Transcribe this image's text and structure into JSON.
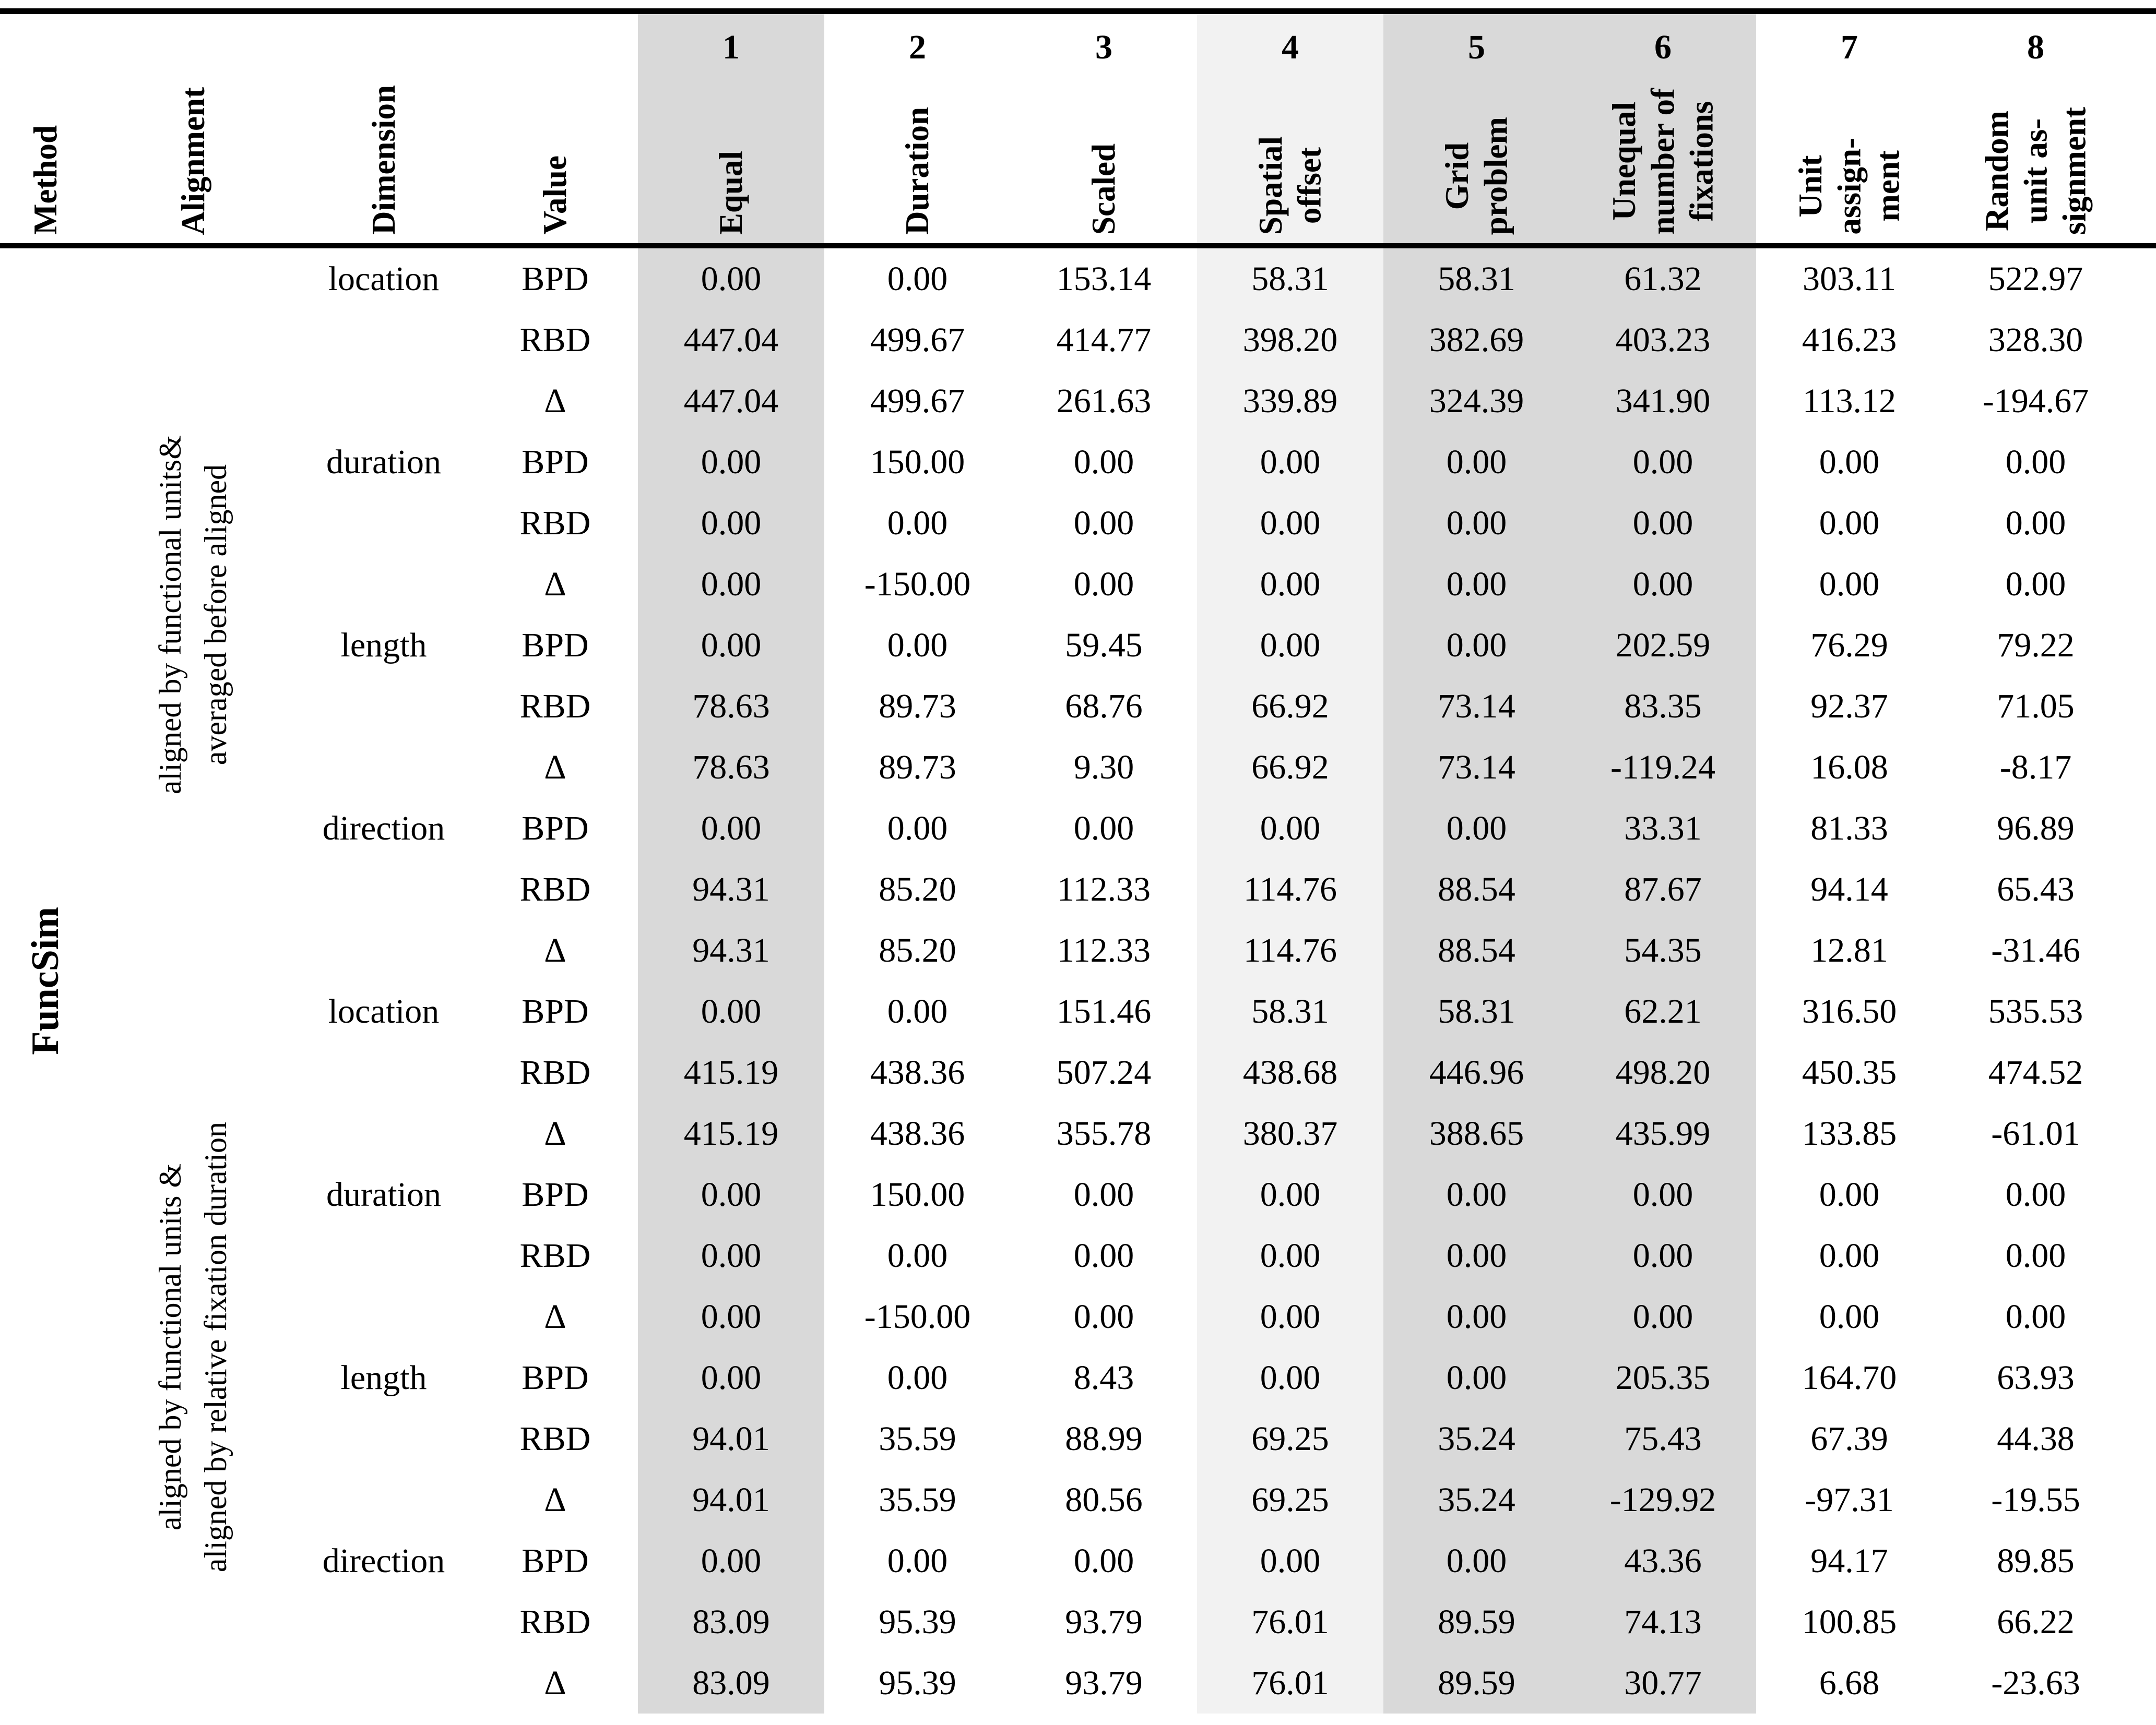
{
  "method": "FuncSim",
  "header": {
    "columns": [
      {
        "num": "",
        "label": "Method"
      },
      {
        "num": "",
        "label": "Alignment"
      },
      {
        "num": "",
        "label": "Dimension"
      },
      {
        "num": "",
        "label": "Value"
      },
      {
        "num": "1",
        "label": "Equal"
      },
      {
        "num": "2",
        "label": "Duration"
      },
      {
        "num": "3",
        "label": "Scaled"
      },
      {
        "num": "4",
        "label": "Spatial\noffset"
      },
      {
        "num": "5",
        "label": "Grid\nproblem"
      },
      {
        "num": "6",
        "label": "Unequal\nnumber of\nfixations"
      },
      {
        "num": "7",
        "label": "Unit\nassign-\nment"
      },
      {
        "num": "8",
        "label": "Random\nunit as-\nsignment"
      }
    ]
  },
  "colors": {
    "shade_dark": "#d9d9d9",
    "shade_light": "#f2f2f2",
    "border": "#000000"
  },
  "sections": [
    {
      "alignment": "aligned by functional units&\naveraged before aligned",
      "groups": [
        {
          "dimension": "location",
          "rows": [
            {
              "value": "BPD",
              "cells": [
                "0.00",
                "0.00",
                "153.14",
                "58.31",
                "58.31",
                "61.32",
                "303.11",
                "522.97"
              ]
            },
            {
              "value": "RBD",
              "cells": [
                "447.04",
                "499.67",
                "414.77",
                "398.20",
                "382.69",
                "403.23",
                "416.23",
                "328.30"
              ]
            },
            {
              "value": "Δ",
              "cells": [
                "447.04",
                "499.67",
                "261.63",
                "339.89",
                "324.39",
                "341.90",
                "113.12",
                "-194.67"
              ]
            }
          ]
        },
        {
          "dimension": "duration",
          "rows": [
            {
              "value": "BPD",
              "cells": [
                "0.00",
                "150.00",
                "0.00",
                "0.00",
                "0.00",
                "0.00",
                "0.00",
                "0.00"
              ]
            },
            {
              "value": "RBD",
              "cells": [
                "0.00",
                "0.00",
                "0.00",
                "0.00",
                "0.00",
                "0.00",
                "0.00",
                "0.00"
              ]
            },
            {
              "value": "Δ",
              "cells": [
                "0.00",
                "-150.00",
                "0.00",
                "0.00",
                "0.00",
                "0.00",
                "0.00",
                "0.00"
              ]
            }
          ]
        },
        {
          "dimension": "length",
          "rows": [
            {
              "value": "BPD",
              "cells": [
                "0.00",
                "0.00",
                "59.45",
                "0.00",
                "0.00",
                "202.59",
                "76.29",
                "79.22"
              ]
            },
            {
              "value": "RBD",
              "cells": [
                "78.63",
                "89.73",
                "68.76",
                "66.92",
                "73.14",
                "83.35",
                "92.37",
                "71.05"
              ]
            },
            {
              "value": "Δ",
              "cells": [
                "78.63",
                "89.73",
                "9.30",
                "66.92",
                "73.14",
                "-119.24",
                "16.08",
                "-8.17"
              ]
            }
          ]
        },
        {
          "dimension": "direction",
          "rows": [
            {
              "value": "BPD",
              "cells": [
                "0.00",
                "0.00",
                "0.00",
                "0.00",
                "0.00",
                "33.31",
                "81.33",
                "96.89"
              ]
            },
            {
              "value": "RBD",
              "cells": [
                "94.31",
                "85.20",
                "112.33",
                "114.76",
                "88.54",
                "87.67",
                "94.14",
                "65.43"
              ]
            },
            {
              "value": "Δ",
              "cells": [
                "94.31",
                "85.20",
                "112.33",
                "114.76",
                "88.54",
                "54.35",
                "12.81",
                "-31.46"
              ]
            }
          ]
        }
      ]
    },
    {
      "alignment": "aligned by functional units &\naligned by relative fixation duration",
      "groups": [
        {
          "dimension": "location",
          "rows": [
            {
              "value": "BPD",
              "cells": [
                "0.00",
                "0.00",
                "151.46",
                "58.31",
                "58.31",
                "62.21",
                "316.50",
                "535.53"
              ]
            },
            {
              "value": "RBD",
              "cells": [
                "415.19",
                "438.36",
                "507.24",
                "438.68",
                "446.96",
                "498.20",
                "450.35",
                "474.52"
              ]
            },
            {
              "value": "Δ",
              "cells": [
                "415.19",
                "438.36",
                "355.78",
                "380.37",
                "388.65",
                "435.99",
                "133.85",
                "-61.01"
              ]
            }
          ]
        },
        {
          "dimension": "duration",
          "rows": [
            {
              "value": "BPD",
              "cells": [
                "0.00",
                "150.00",
                "0.00",
                "0.00",
                "0.00",
                "0.00",
                "0.00",
                "0.00"
              ]
            },
            {
              "value": "RBD",
              "cells": [
                "0.00",
                "0.00",
                "0.00",
                "0.00",
                "0.00",
                "0.00",
                "0.00",
                "0.00"
              ]
            },
            {
              "value": "Δ",
              "cells": [
                "0.00",
                "-150.00",
                "0.00",
                "0.00",
                "0.00",
                "0.00",
                "0.00",
                "0.00"
              ]
            }
          ]
        },
        {
          "dimension": "length",
          "rows": [
            {
              "value": "BPD",
              "cells": [
                "0.00",
                "0.00",
                "8.43",
                "0.00",
                "0.00",
                "205.35",
                "164.70",
                "63.93"
              ]
            },
            {
              "value": "RBD",
              "cells": [
                "94.01",
                "35.59",
                "88.99",
                "69.25",
                "35.24",
                "75.43",
                "67.39",
                "44.38"
              ]
            },
            {
              "value": "Δ",
              "cells": [
                "94.01",
                "35.59",
                "80.56",
                "69.25",
                "35.24",
                "-129.92",
                "-97.31",
                "-19.55"
              ]
            }
          ]
        },
        {
          "dimension": "direction",
          "rows": [
            {
              "value": "BPD",
              "cells": [
                "0.00",
                "0.00",
                "0.00",
                "0.00",
                "0.00",
                "43.36",
                "94.17",
                "89.85"
              ]
            },
            {
              "value": "RBD",
              "cells": [
                "83.09",
                "95.39",
                "93.79",
                "76.01",
                "89.59",
                "74.13",
                "100.85",
                "66.22"
              ]
            },
            {
              "value": "Δ",
              "cells": [
                "83.09",
                "95.39",
                "93.79",
                "76.01",
                "89.59",
                "30.77",
                "6.68",
                "-23.63"
              ]
            }
          ]
        }
      ]
    }
  ]
}
